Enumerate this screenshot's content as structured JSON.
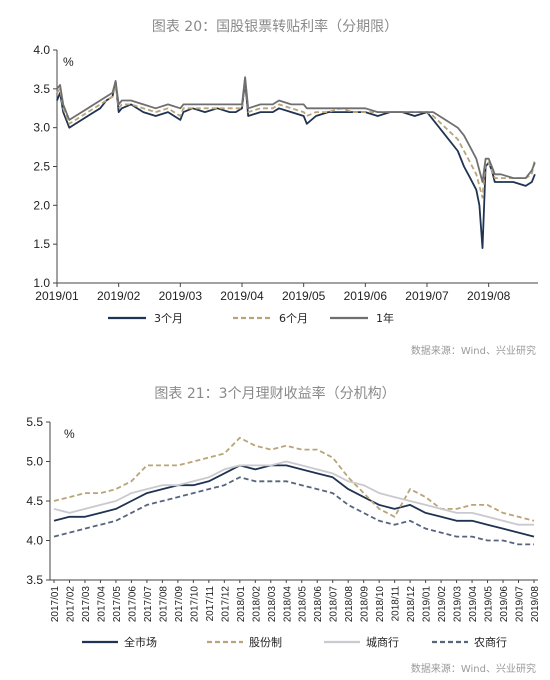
{
  "chart_data": [
    {
      "type": "line",
      "title": "图表 20：国股银票转贴利率（分期限）",
      "ylabel": "%",
      "ylim": [
        1.0,
        4.0
      ],
      "yticks": [
        "1.0",
        "1.5",
        "2.0",
        "2.5",
        "3.0",
        "3.5",
        "4.0"
      ],
      "grid": false,
      "legend_position": "bottom",
      "x_range": [
        0,
        7.8
      ],
      "x_ticks": [
        {
          "label": "2019/01",
          "x": 0
        },
        {
          "label": "2019/02",
          "x": 1
        },
        {
          "label": "2019/03",
          "x": 2
        },
        {
          "label": "2019/04",
          "x": 3
        },
        {
          "label": "2019/05",
          "x": 4
        },
        {
          "label": "2019/06",
          "x": 5
        },
        {
          "label": "2019/07",
          "x": 6
        },
        {
          "label": "2019/08",
          "x": 7
        }
      ],
      "series": [
        {
          "name": "3个月",
          "color": "#1f3352",
          "dash": "solid",
          "x": [
            0,
            0.05,
            0.1,
            0.2,
            0.3,
            0.4,
            0.5,
            0.6,
            0.7,
            0.8,
            0.9,
            0.95,
            1.0,
            1.05,
            1.2,
            1.4,
            1.6,
            1.8,
            2.0,
            2.05,
            2.2,
            2.4,
            2.6,
            2.8,
            2.9,
            3.0,
            3.05,
            3.1,
            3.3,
            3.5,
            3.6,
            3.8,
            4.0,
            4.05,
            4.2,
            4.4,
            4.6,
            4.8,
            5.0,
            5.2,
            5.4,
            5.6,
            5.8,
            6.0,
            6.1,
            6.3,
            6.5,
            6.6,
            6.7,
            6.8,
            6.85,
            6.9,
            6.95,
            7.0,
            7.05,
            7.1,
            7.2,
            7.4,
            7.6,
            7.7,
            7.75
          ],
          "y": [
            3.35,
            3.45,
            3.2,
            3.0,
            3.05,
            3.1,
            3.15,
            3.2,
            3.25,
            3.35,
            3.4,
            3.6,
            3.2,
            3.25,
            3.3,
            3.2,
            3.15,
            3.2,
            3.1,
            3.2,
            3.25,
            3.2,
            3.25,
            3.2,
            3.2,
            3.25,
            3.6,
            3.15,
            3.2,
            3.2,
            3.25,
            3.2,
            3.15,
            3.05,
            3.15,
            3.2,
            3.2,
            3.2,
            3.2,
            3.15,
            3.2,
            3.2,
            3.15,
            3.2,
            3.1,
            2.9,
            2.7,
            2.5,
            2.35,
            2.2,
            2.0,
            1.45,
            2.5,
            2.55,
            2.45,
            2.3,
            2.3,
            2.3,
            2.25,
            2.3,
            2.4
          ]
        },
        {
          "name": "6个月",
          "color": "#b8a478",
          "dash": "dashed",
          "x": [
            0,
            0.05,
            0.1,
            0.2,
            0.3,
            0.4,
            0.5,
            0.6,
            0.7,
            0.8,
            0.9,
            0.95,
            1.0,
            1.05,
            1.2,
            1.4,
            1.6,
            1.8,
            2.0,
            2.05,
            2.2,
            2.4,
            2.6,
            2.8,
            2.9,
            3.0,
            3.05,
            3.1,
            3.3,
            3.5,
            3.6,
            3.8,
            4.0,
            4.05,
            4.2,
            4.4,
            4.6,
            4.8,
            5.0,
            5.2,
            5.4,
            5.6,
            5.8,
            6.0,
            6.1,
            6.3,
            6.5,
            6.6,
            6.7,
            6.8,
            6.85,
            6.9,
            6.95,
            7.0,
            7.05,
            7.1,
            7.2,
            7.4,
            7.6,
            7.7,
            7.75
          ],
          "y": [
            3.45,
            3.5,
            3.25,
            3.05,
            3.1,
            3.15,
            3.2,
            3.25,
            3.3,
            3.35,
            3.4,
            3.55,
            3.25,
            3.3,
            3.3,
            3.25,
            3.2,
            3.25,
            3.15,
            3.25,
            3.25,
            3.25,
            3.25,
            3.25,
            3.25,
            3.25,
            3.65,
            3.2,
            3.25,
            3.25,
            3.3,
            3.25,
            3.2,
            3.15,
            3.2,
            3.2,
            3.25,
            3.2,
            3.2,
            3.2,
            3.2,
            3.2,
            3.2,
            3.2,
            3.15,
            3.0,
            2.85,
            2.7,
            2.55,
            2.4,
            2.25,
            2.1,
            2.55,
            2.55,
            2.45,
            2.35,
            2.35,
            2.35,
            2.35,
            2.4,
            2.6
          ]
        },
        {
          "name": "1年",
          "color": "#6f6f6f",
          "dash": "solid",
          "x": [
            0,
            0.05,
            0.1,
            0.2,
            0.3,
            0.4,
            0.5,
            0.6,
            0.7,
            0.8,
            0.9,
            0.95,
            1.0,
            1.05,
            1.2,
            1.4,
            1.6,
            1.8,
            2.0,
            2.05,
            2.2,
            2.4,
            2.6,
            2.8,
            2.9,
            3.0,
            3.05,
            3.1,
            3.3,
            3.5,
            3.6,
            3.8,
            4.0,
            4.05,
            4.2,
            4.4,
            4.6,
            4.8,
            5.0,
            5.2,
            5.4,
            5.6,
            5.8,
            6.0,
            6.1,
            6.3,
            6.5,
            6.6,
            6.7,
            6.8,
            6.85,
            6.9,
            6.95,
            7.0,
            7.05,
            7.1,
            7.2,
            7.4,
            7.6,
            7.7,
            7.75
          ],
          "y": [
            3.5,
            3.55,
            3.3,
            3.1,
            3.15,
            3.2,
            3.25,
            3.3,
            3.35,
            3.4,
            3.45,
            3.6,
            3.3,
            3.35,
            3.35,
            3.3,
            3.25,
            3.3,
            3.25,
            3.3,
            3.3,
            3.3,
            3.3,
            3.3,
            3.3,
            3.3,
            3.65,
            3.25,
            3.3,
            3.3,
            3.35,
            3.3,
            3.3,
            3.25,
            3.25,
            3.25,
            3.25,
            3.25,
            3.25,
            3.2,
            3.2,
            3.2,
            3.2,
            3.2,
            3.2,
            3.1,
            3.0,
            2.9,
            2.75,
            2.6,
            2.45,
            2.3,
            2.6,
            2.6,
            2.5,
            2.4,
            2.4,
            2.35,
            2.35,
            2.45,
            2.55
          ]
        }
      ]
    },
    {
      "type": "line",
      "title": "图表 21：3个月理财收益率（分机构）",
      "ylabel": "%",
      "ylim": [
        3.5,
        5.5
      ],
      "yticks": [
        "3.5",
        "4.0",
        "4.5",
        "5.0",
        "5.5"
      ],
      "grid": false,
      "legend_position": "bottom",
      "categories": [
        "2017/01",
        "2017/02",
        "2017/03",
        "2017/04",
        "2017/05",
        "2017/06",
        "2017/07",
        "2017/08",
        "2017/09",
        "2017/10",
        "2017/11",
        "2017/12",
        "2018/01",
        "2018/02",
        "2018/03",
        "2018/04",
        "2018/05",
        "2018/06",
        "2018/07",
        "2018/08",
        "2018/09",
        "2018/10",
        "2018/11",
        "2018/12",
        "2019/01",
        "2019/02",
        "2019/03",
        "2019/04",
        "2019/05",
        "2019/06",
        "2019/07",
        "2019/08"
      ],
      "series": [
        {
          "name": "全市场",
          "color": "#1f3352",
          "dash": "solid",
          "values": [
            4.25,
            4.3,
            4.3,
            4.35,
            4.4,
            4.5,
            4.6,
            4.65,
            4.7,
            4.7,
            4.75,
            4.85,
            4.95,
            4.9,
            4.95,
            4.95,
            4.9,
            4.85,
            4.8,
            4.65,
            4.55,
            4.45,
            4.4,
            4.45,
            4.35,
            4.3,
            4.25,
            4.25,
            4.2,
            4.15,
            4.1,
            4.05
          ]
        },
        {
          "name": "股份制",
          "color": "#b8a478",
          "dash": "dashed",
          "values": [
            4.5,
            4.55,
            4.6,
            4.6,
            4.65,
            4.75,
            4.95,
            4.95,
            4.95,
            5.0,
            5.05,
            5.1,
            5.3,
            5.2,
            5.15,
            5.2,
            5.15,
            5.15,
            5.05,
            4.8,
            4.6,
            4.4,
            4.3,
            4.65,
            4.55,
            4.4,
            4.4,
            4.45,
            4.45,
            4.35,
            4.3,
            4.25
          ]
        },
        {
          "name": "城商行",
          "color": "#c9c9cf",
          "dash": "solid",
          "values": [
            4.4,
            4.35,
            4.4,
            4.45,
            4.5,
            4.6,
            4.65,
            4.7,
            4.7,
            4.75,
            4.8,
            4.9,
            4.95,
            4.95,
            4.95,
            5.0,
            4.95,
            4.9,
            4.85,
            4.75,
            4.7,
            4.6,
            4.55,
            4.5,
            4.45,
            4.4,
            4.35,
            4.35,
            4.3,
            4.25,
            4.2,
            4.2
          ]
        },
        {
          "name": "农商行",
          "color": "#56657d",
          "dash": "dashed",
          "values": [
            4.05,
            4.1,
            4.15,
            4.2,
            4.25,
            4.35,
            4.45,
            4.5,
            4.55,
            4.6,
            4.65,
            4.7,
            4.8,
            4.75,
            4.75,
            4.75,
            4.7,
            4.65,
            4.6,
            4.45,
            4.35,
            4.25,
            4.2,
            4.25,
            4.15,
            4.1,
            4.05,
            4.05,
            4.0,
            4.0,
            3.95,
            3.95
          ]
        }
      ]
    }
  ],
  "sources": [
    "数据来源：Wind、兴业研究",
    "数据来源：Wind、兴业研究"
  ]
}
